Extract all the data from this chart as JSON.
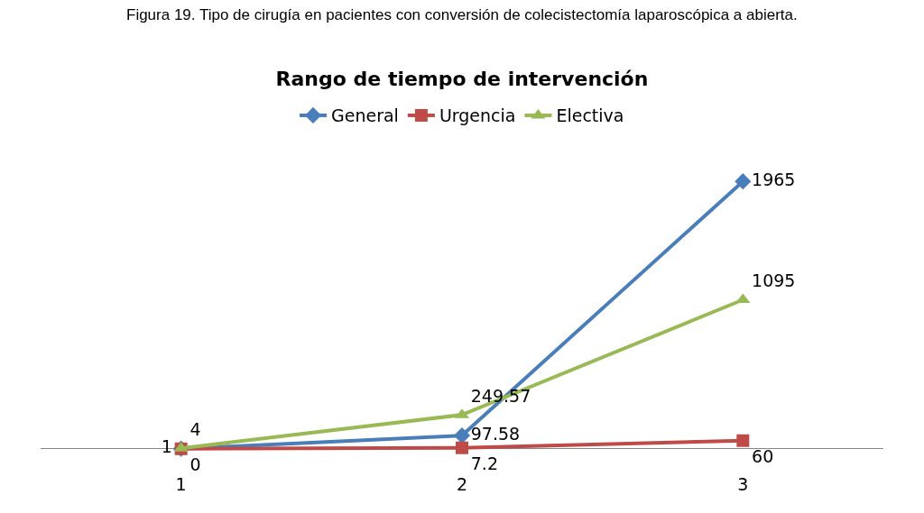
{
  "chart_data": {
    "type": "line",
    "title": "Rango de tiempo de intervención",
    "annotations": [
      "Figura 19. Tipo de cirugía en pacientes con conversión de colecistectomía laparoscópica a abierta."
    ],
    "categories": [
      "1",
      "2",
      "3"
    ],
    "series": [
      {
        "name": "General",
        "color": "#4a7ebb",
        "values": [
          1,
          97.58,
          1965
        ],
        "marker": "diamond"
      },
      {
        "name": "Urgencia",
        "color": "#be4b48",
        "values": [
          0,
          7.2,
          60
        ],
        "marker": "square"
      },
      {
        "name": "Electiva",
        "color": "#98b954",
        "values": [
          4,
          249.57,
          1095
        ],
        "marker": "triangle"
      }
    ],
    "data_labels": true,
    "legend": "top",
    "grid": false,
    "line_style": "solid"
  }
}
